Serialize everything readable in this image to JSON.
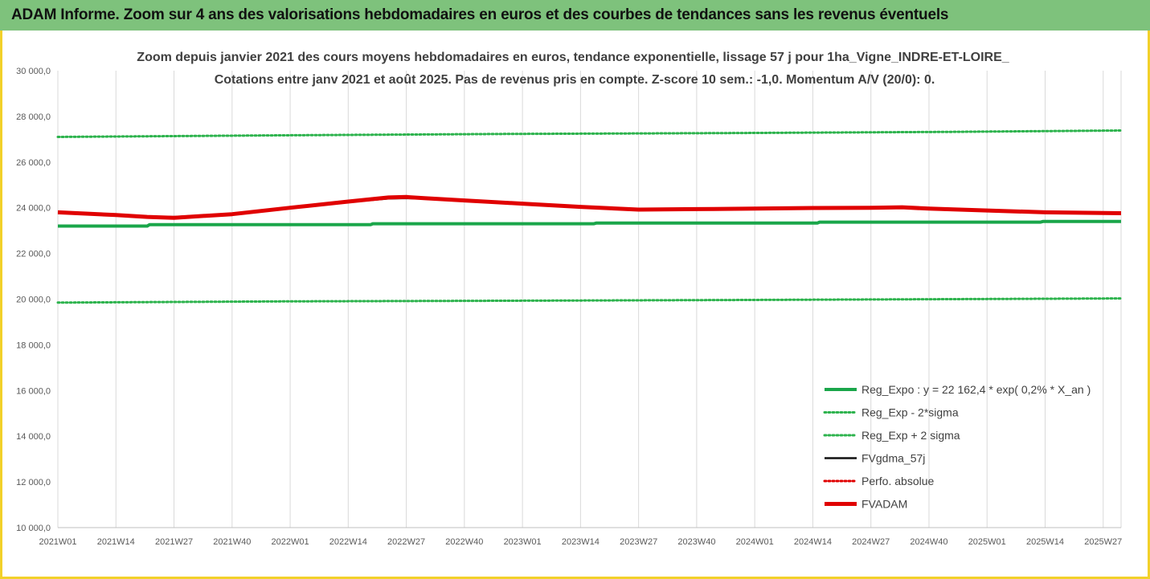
{
  "banner": {
    "title": "ADAM Informe. Zoom sur 4 ans des valorisations hebdomadaires en euros et des courbes de tendances sans les revenus éventuels"
  },
  "colors": {
    "green": "#1aa64a",
    "green_dotted": "#2db34d",
    "black": "#111111",
    "red": "#e00000",
    "grid": "#d9d9d9",
    "banner": "#7ec27c",
    "frame": "#f2d12a"
  },
  "chart_data": {
    "type": "line",
    "title": "Zoom depuis janvier 2021 des cours moyens hebdomadaires en euros, tendance exponentielle, lissage 57 j pour 1ha_Vigne_INDRE-ET-LOIRE_",
    "subtitle": "Cotations entre janv 2021 et août 2025. Pas de revenus pris en compte. Z-score 10 sem.: -1,0. Momentum A/V (20/0): 0.",
    "xlabel": "",
    "ylabel": "",
    "ylim": [
      10000,
      30000
    ],
    "yticks": [
      10000,
      12000,
      14000,
      16000,
      18000,
      20000,
      22000,
      24000,
      26000,
      28000,
      30000
    ],
    "ytick_labels": [
      "10 000,0",
      "12 000,0",
      "14 000,0",
      "16 000,0",
      "18 000,0",
      "20 000,0",
      "22 000,0",
      "24 000,0",
      "26 000,0",
      "28 000,0",
      "30 000,0"
    ],
    "xlim": [
      0,
      238
    ],
    "xticks": [
      0,
      13,
      26,
      39,
      52,
      65,
      78,
      91,
      104,
      117,
      130,
      143,
      156,
      169,
      182,
      195,
      208,
      221,
      234
    ],
    "xtick_labels": [
      "2021W01",
      "2021W14",
      "2021W27",
      "2021W40",
      "2022W01",
      "2022W14",
      "2022W27",
      "2022W40",
      "2023W01",
      "2023W14",
      "2023W27",
      "2023W40",
      "2024W01",
      "2024W14",
      "2024W27",
      "2024W40",
      "2025W01",
      "2025W14",
      "2025W27"
    ],
    "grid": "vertical",
    "legend_position": "bottom-right",
    "series": [
      {
        "name": "Reg_Expo : y = 22 162,4 * exp( 0,2% *  X_an )",
        "style": "solid-thick",
        "color": "#1aa64a",
        "x": [
          0,
          20,
          20.5,
          70,
          70.5,
          120,
          120.5,
          170,
          170.5,
          220,
          220.5,
          238
        ],
        "y": [
          23200,
          23200,
          23260,
          23260,
          23300,
          23300,
          23330,
          23330,
          23370,
          23370,
          23400,
          23400
        ]
      },
      {
        "name": "Reg_Exp - 2*sigma",
        "style": "dotted",
        "color": "#2db34d",
        "x": [
          0,
          50,
          100,
          150,
          200,
          238
        ],
        "y": [
          19850,
          19900,
          19930,
          19960,
          20000,
          20030
        ]
      },
      {
        "name": "Reg_Exp + 2 sigma",
        "style": "dotted",
        "color": "#2db34d",
        "x": [
          0,
          50,
          100,
          150,
          200,
          238
        ],
        "y": [
          27100,
          27170,
          27230,
          27270,
          27320,
          27380
        ]
      },
      {
        "name": "FVgdma_57j",
        "style": "solid",
        "color": "#111111",
        "x": [
          0,
          13,
          20,
          26,
          39,
          52,
          65,
          74,
          78,
          82,
          91,
          104,
          117,
          130,
          143,
          156,
          169,
          182,
          195,
          208,
          221,
          238
        ],
        "y": [
          23820,
          23700,
          23620,
          23600,
          23740,
          24000,
          24250,
          24400,
          24420,
          24400,
          24320,
          24180,
          24040,
          23950,
          23950,
          23970,
          24000,
          24010,
          23960,
          23880,
          23820,
          23780
        ]
      },
      {
        "name": "Perfo. absolue",
        "style": "dotted",
        "color": "#e00000",
        "x": [
          0,
          238
        ],
        "y": [
          23780,
          23780
        ],
        "hidden_line": true
      },
      {
        "name": "FVADAM",
        "style": "solid-thick",
        "color": "#e00000",
        "x": [
          0,
          13,
          20,
          26,
          39,
          52,
          65,
          74,
          78,
          82,
          91,
          104,
          117,
          130,
          143,
          156,
          169,
          182,
          189,
          195,
          208,
          221,
          238
        ],
        "y": [
          23800,
          23680,
          23600,
          23560,
          23720,
          24000,
          24270,
          24450,
          24470,
          24420,
          24320,
          24180,
          24040,
          23920,
          23940,
          23960,
          23990,
          24000,
          24020,
          23960,
          23880,
          23800,
          23760
        ]
      }
    ]
  }
}
